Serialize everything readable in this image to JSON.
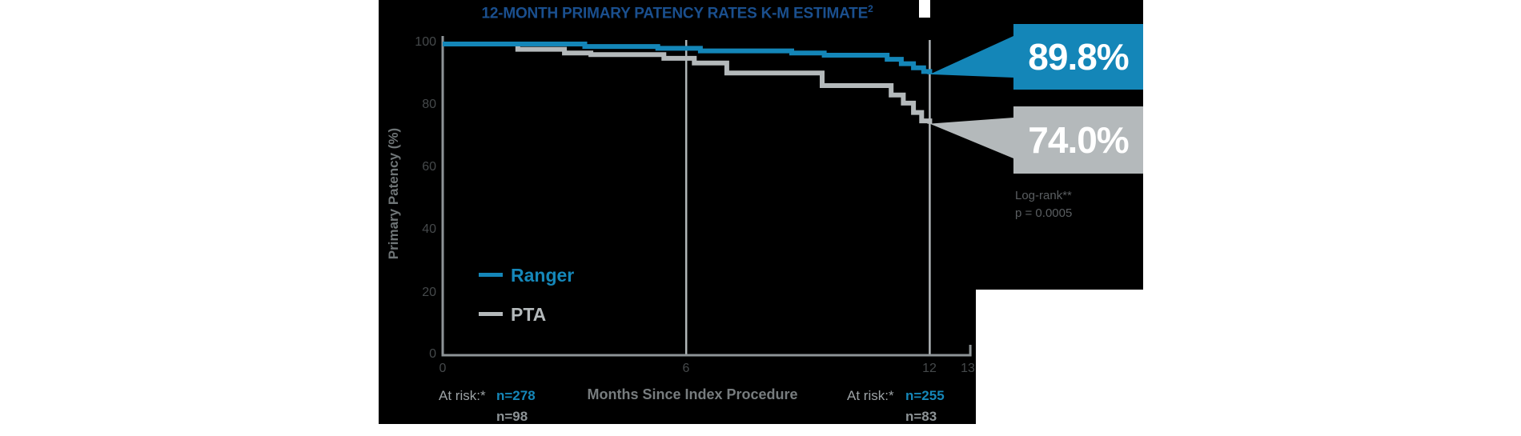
{
  "title": {
    "text": "12-MONTH PRIMARY PATENCY RATES K-M ESTIMATE",
    "superscript": "2"
  },
  "colors": {
    "background_panel": "#000000",
    "accent_blue": "#1486b8",
    "title_navy": "#1a4f8e",
    "gray_series": "#b4b9bb",
    "axis_gray": "#8e9497",
    "reference_line_gray": "#b0b6b8",
    "tick_label_gray": "#45494b",
    "callout_text": "#ffffff"
  },
  "y_axis": {
    "label": "Primary Patency (%)",
    "ticks": [
      "100",
      "80",
      "60",
      "40",
      "20",
      "0"
    ]
  },
  "x_axis": {
    "label": "Months Since Index Procedure",
    "ticks": [
      "0",
      "6",
      "12",
      "13"
    ]
  },
  "legend": {
    "ranger": "Ranger",
    "pta": "PTA"
  },
  "callouts": {
    "ranger_value": "89.8%",
    "pta_value": "74.0%"
  },
  "stats": {
    "test": "Log-rank**",
    "p_value": "p = 0.0005"
  },
  "at_risk": {
    "left": {
      "label": "At risk:*",
      "ranger": "n=278",
      "pta": "n=98"
    },
    "right": {
      "label": "At risk:*",
      "ranger": "n=255",
      "pta": "n=83"
    }
  },
  "chart_data": {
    "type": "line",
    "subtype": "kaplan-meier-step",
    "title": "12-MONTH PRIMARY PATENCY RATES K-M ESTIMATE²",
    "xlabel": "Months Since Index Procedure",
    "ylabel": "Primary Patency (%)",
    "xlim": [
      0,
      13
    ],
    "ylim": [
      0,
      100
    ],
    "x_ticks": [
      0,
      6,
      12,
      13
    ],
    "y_ticks": [
      100,
      80,
      60,
      40,
      20,
      0
    ],
    "grid": false,
    "legend_position": "lower-left-inside",
    "reference_lines_x": [
      6,
      12
    ],
    "series": [
      {
        "name": "Ranger",
        "color": "#1486b8",
        "endpoint_label": "89.8%",
        "points": [
          [
            0,
            99.5
          ],
          [
            3.5,
            98.7
          ],
          [
            5.3,
            98.1
          ],
          [
            6.35,
            97.3
          ],
          [
            8.6,
            96.6
          ],
          [
            9.4,
            95.9
          ],
          [
            10.95,
            94.6
          ],
          [
            11.3,
            93.2
          ],
          [
            11.6,
            91.9
          ],
          [
            11.85,
            90.7
          ],
          [
            12,
            89.8
          ]
        ],
        "at_risk": {
          "month_0": 278,
          "month_12": 255
        }
      },
      {
        "name": "PTA",
        "color": "#b4b9bb",
        "endpoint_label": "74.0%",
        "points": [
          [
            0,
            99.5
          ],
          [
            1.85,
            97.8
          ],
          [
            3.0,
            96.6
          ],
          [
            3.65,
            96.1
          ],
          [
            5.45,
            94.9
          ],
          [
            6.2,
            93.4
          ],
          [
            7.0,
            90.2
          ],
          [
            9.35,
            86.2
          ],
          [
            11.05,
            83.2
          ],
          [
            11.35,
            80.6
          ],
          [
            11.6,
            77.6
          ],
          [
            11.8,
            74.9
          ],
          [
            12,
            74.0
          ]
        ],
        "at_risk": {
          "month_0": 98,
          "month_12": 83
        }
      }
    ],
    "stats": {
      "test": "Log-rank**",
      "p_value": "p = 0.0005"
    }
  }
}
